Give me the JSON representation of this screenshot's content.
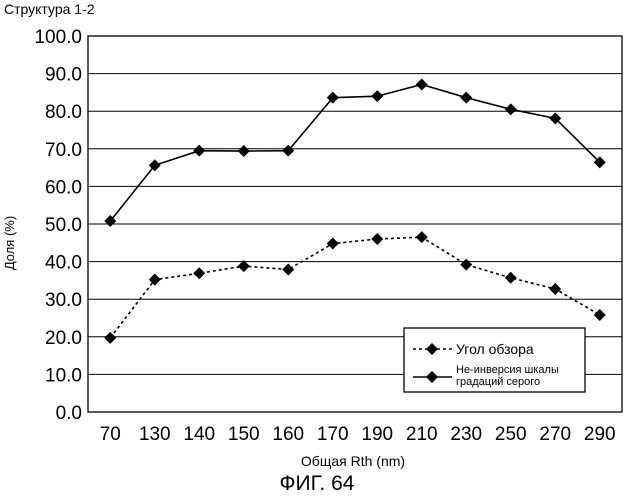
{
  "heading": "Структура 1-2",
  "figure_label": "ФИГ. 64",
  "chart_data": {
    "type": "line",
    "title": "",
    "xlabel": "Общая Rth (nm)",
    "ylabel": "Доля (%)",
    "categories": [
      "70",
      "130",
      "140",
      "150",
      "160",
      "170",
      "190",
      "210",
      "230",
      "250",
      "270",
      "290"
    ],
    "ylim": [
      0,
      100
    ],
    "yticks": [
      "0.0",
      "10.0",
      "20.0",
      "30.0",
      "40.0",
      "50.0",
      "60.0",
      "70.0",
      "80.0",
      "90.0",
      "100.0"
    ],
    "grid": true,
    "legend_position": "bottom-right",
    "series": [
      {
        "name": "Угол обзора",
        "line_style": "dotted",
        "marker": "diamond",
        "color": "#000000",
        "values": [
          19.7,
          35.2,
          36.9,
          38.8,
          37.9,
          44.8,
          46.0,
          46.5,
          39.2,
          35.7,
          32.7,
          25.8
        ]
      },
      {
        "name": "Не-инверсия  шкалы градаций серого",
        "name_lines": [
          "Не-инверсия  шкалы",
          "градаций серого"
        ],
        "line_style": "solid",
        "marker": "diamond",
        "color": "#000000",
        "values": [
          50.8,
          65.6,
          69.5,
          69.4,
          69.5,
          83.6,
          84.0,
          87.1,
          83.6,
          80.5,
          78.1,
          66.4
        ]
      }
    ]
  }
}
